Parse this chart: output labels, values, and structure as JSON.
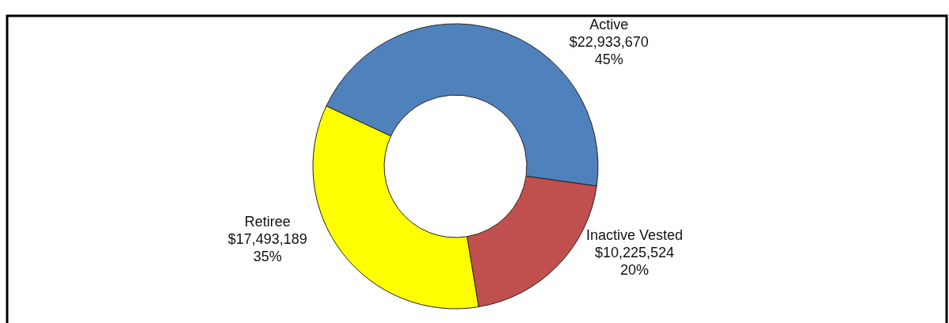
{
  "chart_data": {
    "type": "donut",
    "categories": [
      "Active",
      "Inactive Vested",
      "Retiree"
    ],
    "values": [
      22933670,
      10225524,
      17493189
    ],
    "colors": [
      "#4f81bd",
      "#c0504d",
      "#ffff00"
    ],
    "value_labels": [
      "$22,933,670\n45%",
      "$10,225,524\n20%",
      "$17,493,189\n35%"
    ],
    "legend": false
  }
}
